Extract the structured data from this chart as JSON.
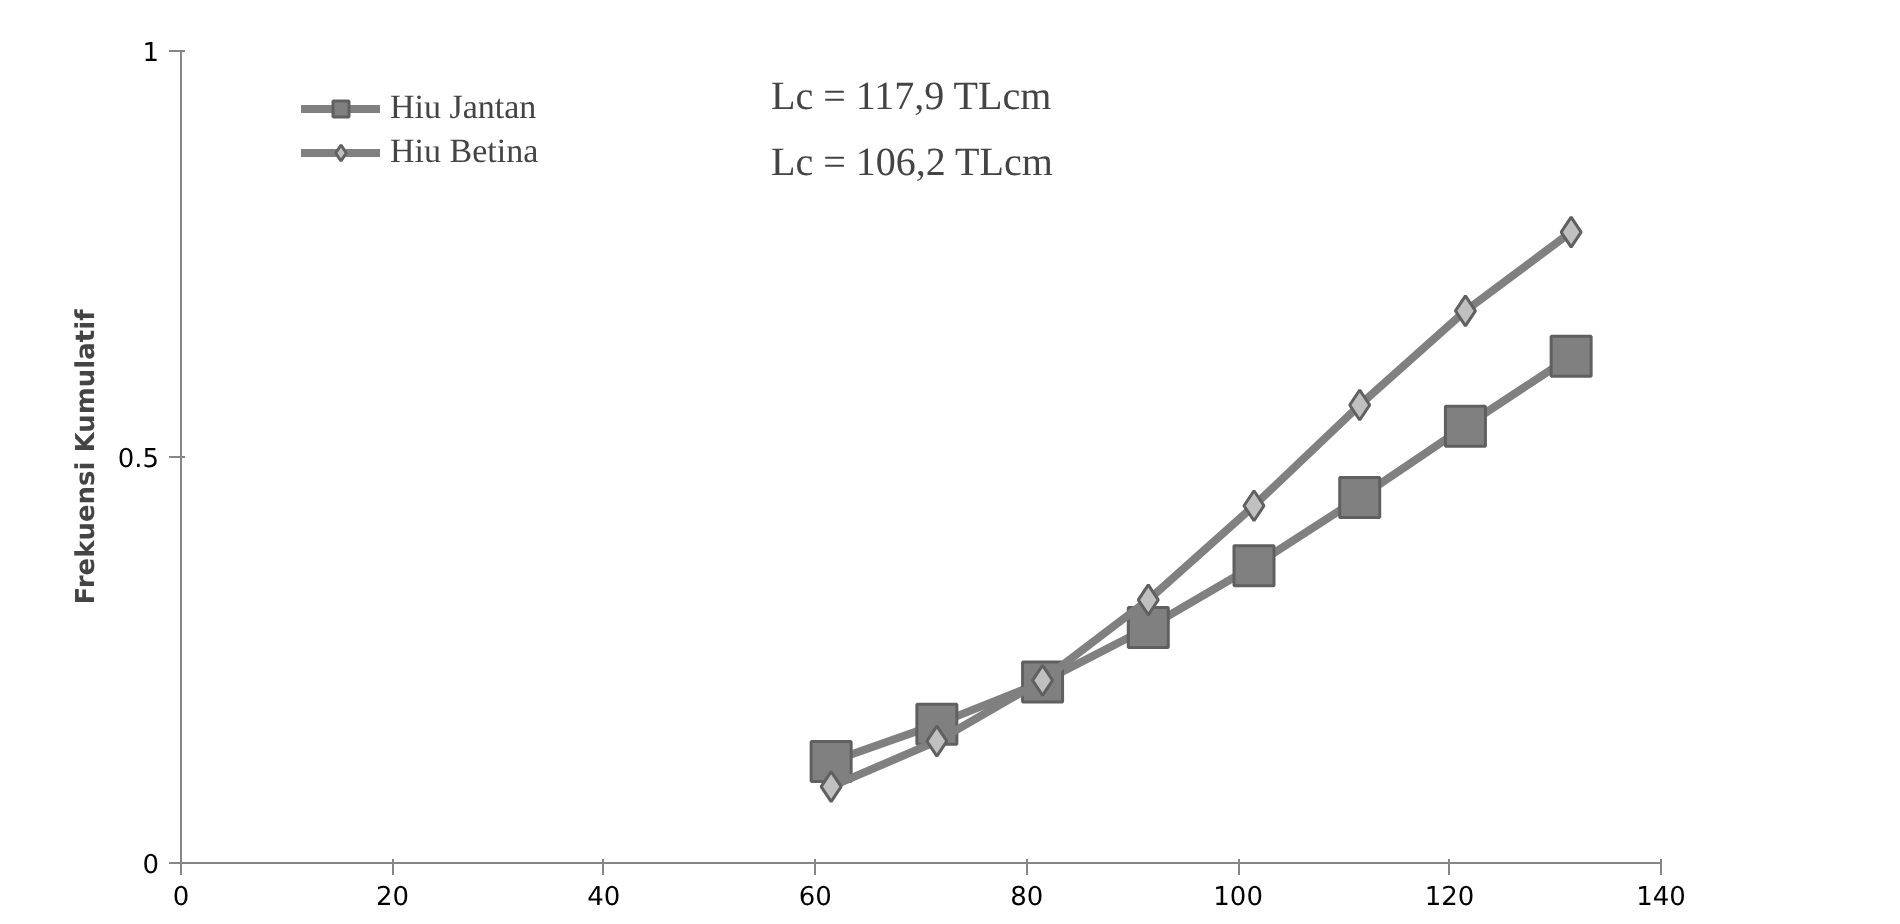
{
  "chart_data": {
    "type": "line",
    "ylabel": "Frekuensi Kumulatif",
    "xlim": [
      0,
      140
    ],
    "xticks": [
      0,
      20,
      40,
      60,
      80,
      100,
      120,
      140
    ],
    "ylim": [
      0,
      1
    ],
    "yticks": [
      0,
      0.5,
      1
    ],
    "grid": false,
    "legend": "top left",
    "line_style": "solid",
    "x": [
      61.5,
      71.5,
      81.5,
      91.5,
      101.5,
      111.5,
      121.5,
      131.5
    ],
    "series": [
      {
        "name": "Hiu Jantan",
        "color": "#808080",
        "marker": "square",
        "values": [
          0.125,
          0.171,
          0.223,
          0.29,
          0.366,
          0.45,
          0.538,
          0.624
        ]
      },
      {
        "name": "Hiu Betina",
        "color": "#c0c0c0",
        "marker": "diamond",
        "values": [
          0.094,
          0.15,
          0.225,
          0.324,
          0.44,
          0.564,
          0.68,
          0.777
        ]
      }
    ],
    "annotations": [
      "Lc = 117,9 TLcm",
      "Lc = 106,2 TLcm"
    ]
  }
}
